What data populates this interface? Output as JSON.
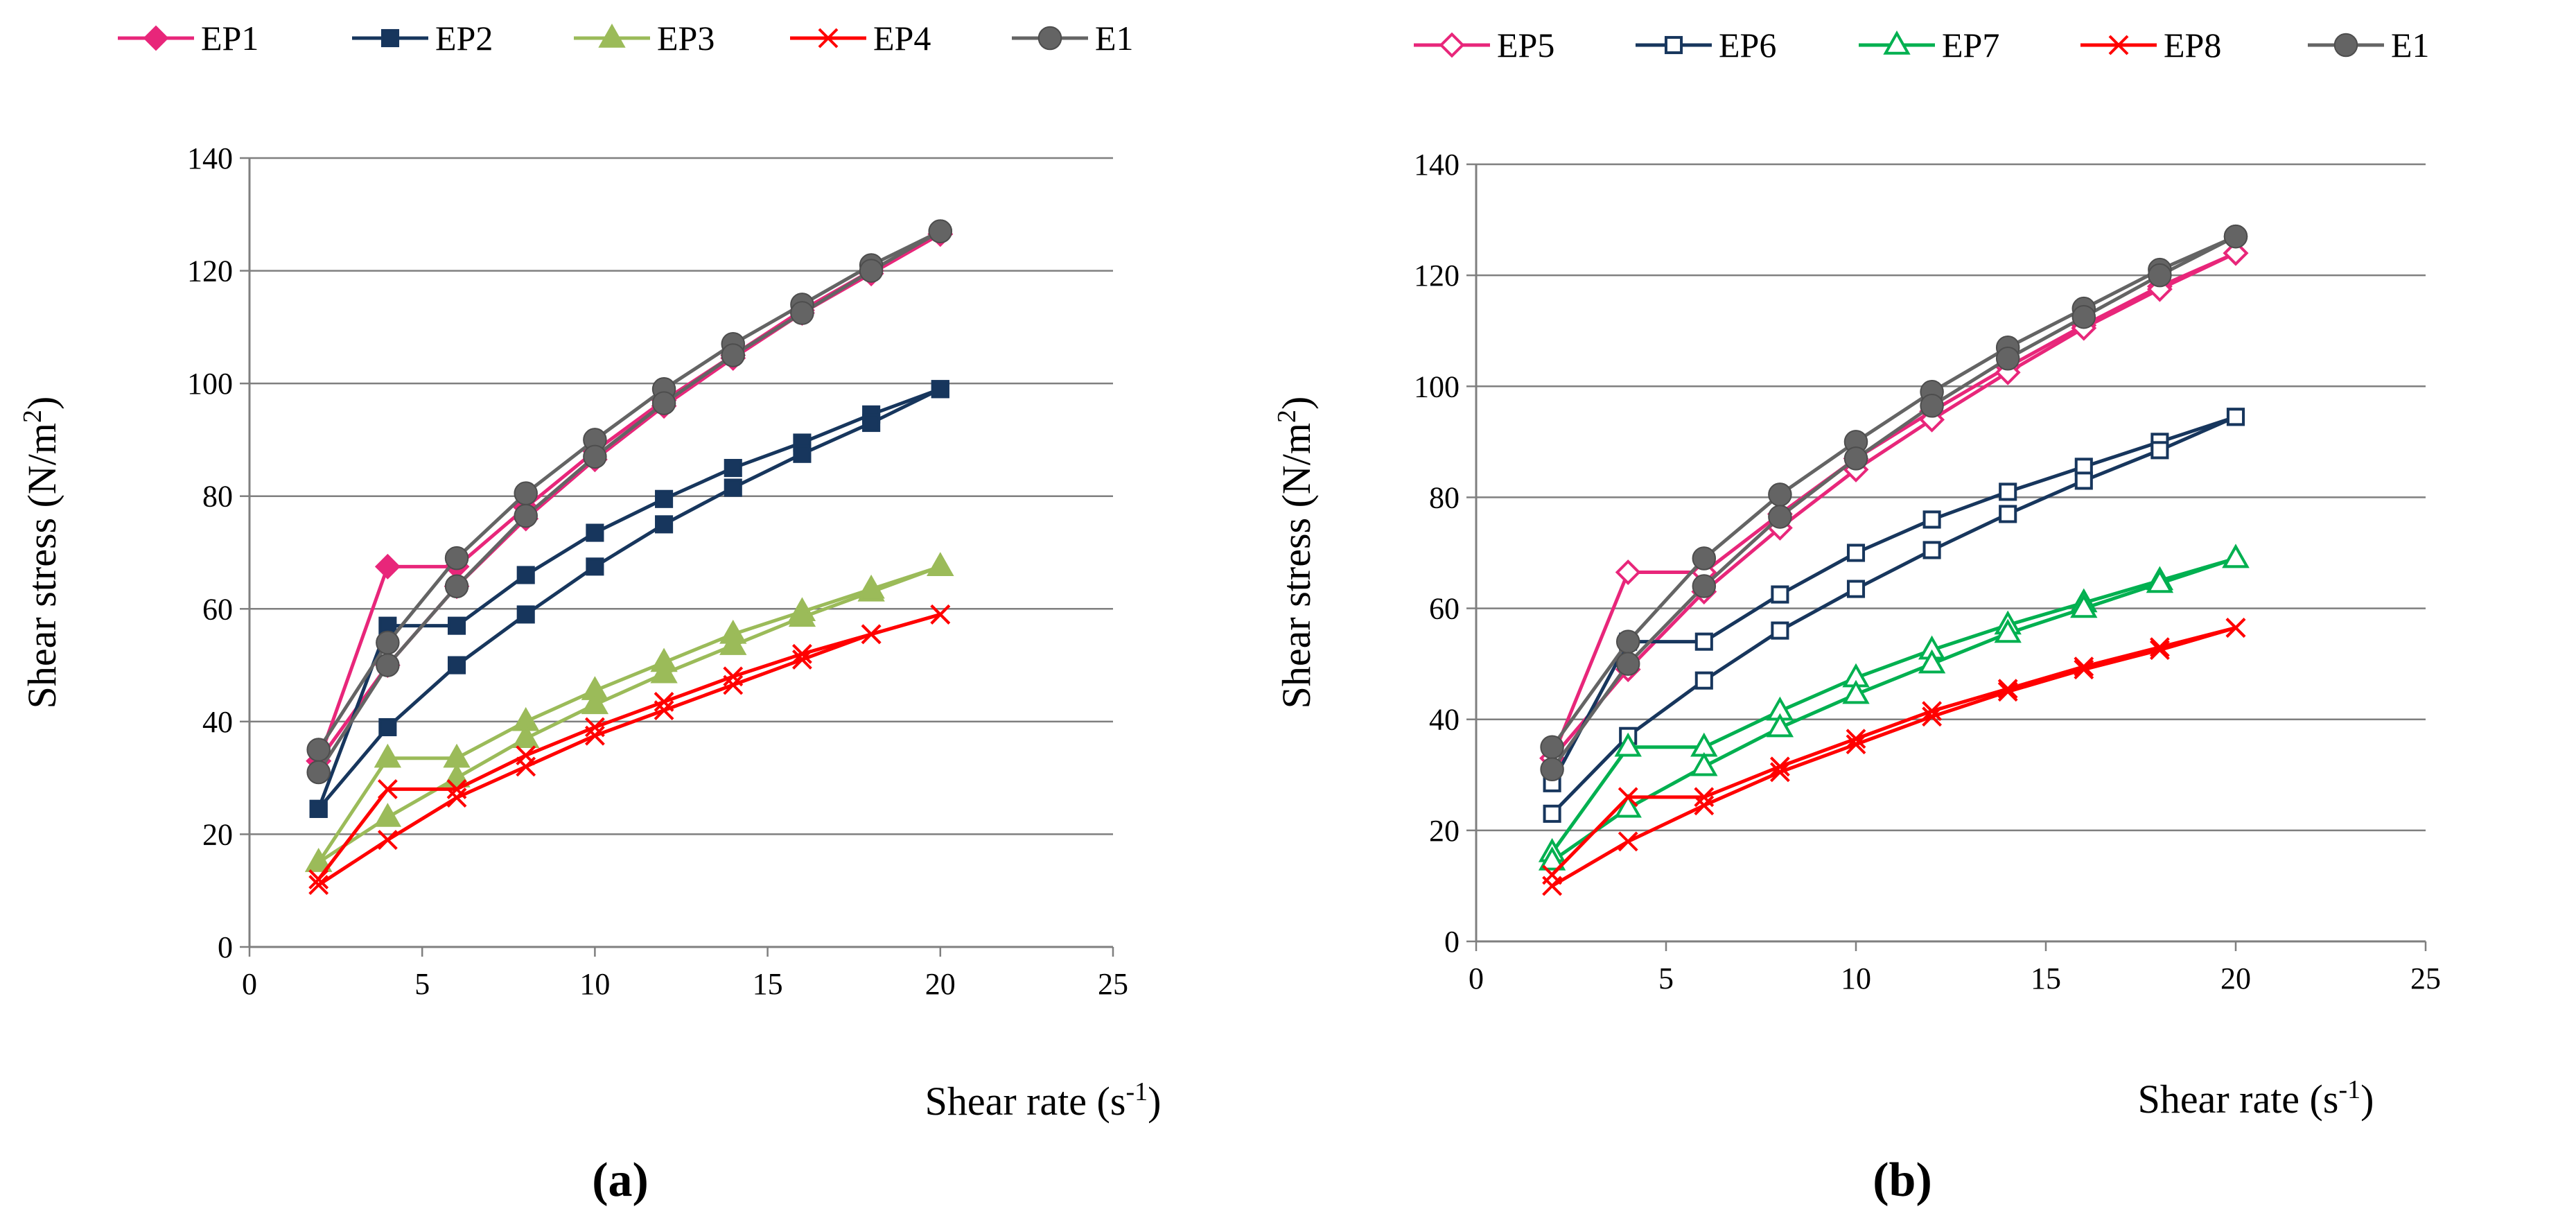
{
  "chart_data": [
    {
      "type": "line",
      "panel_label": "(a)",
      "xlabel": "Shear rate (s",
      "xlabel_sup": "-1",
      "xlabel_close": ")",
      "ylabel": "Shear stress (N/m",
      "ylabel_sup": "2",
      "ylabel_close": ")",
      "xlim": [
        0,
        25
      ],
      "ylim": [
        0,
        140
      ],
      "xticks": [
        "0",
        "5",
        "10",
        "15",
        "20",
        "25"
      ],
      "yticks": [
        "0",
        "20",
        "40",
        "60",
        "80",
        "100",
        "120",
        "140"
      ],
      "grid": true,
      "legend_position": "top",
      "series": [
        {
          "name": "EP1",
          "color": "#E8267A",
          "marker": "diamond",
          "up": [
            [
              2,
              33
            ],
            [
              4,
              67.5
            ],
            [
              6,
              67.5
            ],
            [
              8,
              78
            ],
            [
              10,
              88
            ],
            [
              12,
              97
            ],
            [
              14,
              105
            ],
            [
              16,
              113
            ],
            [
              18,
              120
            ],
            [
              20,
              126.5
            ]
          ],
          "down": [
            [
              2,
              33
            ],
            [
              4,
              50
            ],
            [
              6,
              64
            ],
            [
              8,
              76
            ],
            [
              10,
              86.5
            ],
            [
              12,
              96
            ],
            [
              14,
              104.5
            ],
            [
              16,
              112.5
            ],
            [
              18,
              119.5
            ],
            [
              20,
              126.5
            ]
          ]
        },
        {
          "name": "EP2",
          "color": "#17365D",
          "marker": "square",
          "up": [
            [
              2,
              24.5
            ],
            [
              4,
              57
            ],
            [
              6,
              57
            ],
            [
              8,
              66
            ],
            [
              10,
              73.5
            ],
            [
              12,
              79.5
            ],
            [
              14,
              85
            ],
            [
              16,
              89.5
            ],
            [
              18,
              94.5
            ],
            [
              20,
              99
            ]
          ],
          "down": [
            [
              2,
              24.5
            ],
            [
              4,
              39
            ],
            [
              6,
              50
            ],
            [
              8,
              59
            ],
            [
              10,
              67.5
            ],
            [
              12,
              75
            ],
            [
              14,
              81.5
            ],
            [
              16,
              87.5
            ],
            [
              18,
              93
            ],
            [
              20,
              99
            ]
          ]
        },
        {
          "name": "EP3",
          "color": "#9BBB59",
          "marker": "triangle",
          "up": [
            [
              2,
              15
            ],
            [
              4,
              33.5
            ],
            [
              6,
              33.5
            ],
            [
              8,
              40
            ],
            [
              10,
              45.5
            ],
            [
              12,
              50.5
            ],
            [
              14,
              55.5
            ],
            [
              16,
              59.5
            ],
            [
              18,
              63.5
            ],
            [
              20,
              67.5
            ]
          ],
          "down": [
            [
              2,
              15
            ],
            [
              4,
              23
            ],
            [
              6,
              30
            ],
            [
              8,
              37
            ],
            [
              10,
              43
            ],
            [
              12,
              48.5
            ],
            [
              14,
              53.5
            ],
            [
              16,
              58.5
            ],
            [
              18,
              63
            ],
            [
              20,
              67.5
            ]
          ]
        },
        {
          "name": "EP4",
          "color": "#FF0000",
          "marker": "x",
          "up": [
            [
              2,
              12
            ],
            [
              4,
              28
            ],
            [
              6,
              28
            ],
            [
              8,
              34
            ],
            [
              10,
              39
            ],
            [
              12,
              43.5
            ],
            [
              14,
              48
            ],
            [
              16,
              52
            ],
            [
              18,
              55.5
            ],
            [
              20,
              59
            ]
          ],
          "down": [
            [
              2,
              11
            ],
            [
              4,
              19
            ],
            [
              6,
              26.5
            ],
            [
              8,
              32
            ],
            [
              10,
              37.5
            ],
            [
              12,
              42
            ],
            [
              14,
              46.5
            ],
            [
              16,
              51
            ],
            [
              18,
              55.5
            ],
            [
              20,
              59
            ]
          ]
        },
        {
          "name": "E1",
          "color": "#646464",
          "marker": "circle",
          "up": [
            [
              2,
              35
            ],
            [
              4,
              54
            ],
            [
              6,
              69
            ],
            [
              8,
              80.5
            ],
            [
              10,
              90
            ],
            [
              12,
              99
            ],
            [
              14,
              107
            ],
            [
              16,
              114
            ],
            [
              18,
              121
            ],
            [
              20,
              127
            ]
          ],
          "down": [
            [
              2,
              31
            ],
            [
              4,
              50
            ],
            [
              6,
              64
            ],
            [
              8,
              76.5
            ],
            [
              10,
              87
            ],
            [
              12,
              96.5
            ],
            [
              14,
              105
            ],
            [
              16,
              112.5
            ],
            [
              18,
              120
            ],
            [
              20,
              127
            ]
          ]
        }
      ]
    },
    {
      "type": "line",
      "panel_label": "(b)",
      "xlabel": "Shear rate (s",
      "xlabel_sup": "-1",
      "xlabel_close": ")",
      "ylabel": "Shear stress (N/m",
      "ylabel_sup": "2",
      "ylabel_close": ")",
      "xlim": [
        0,
        25
      ],
      "ylim": [
        0,
        140
      ],
      "xticks": [
        "0",
        "5",
        "10",
        "15",
        "20",
        "25"
      ],
      "yticks": [
        "0",
        "20",
        "40",
        "60",
        "80",
        "100",
        "120",
        "140"
      ],
      "grid": true,
      "legend_position": "top",
      "series": [
        {
          "name": "EP5",
          "color": "#E8267A",
          "marker": "diamond-open",
          "up": [
            [
              2,
              33
            ],
            [
              4,
              66.5
            ],
            [
              6,
              66.5
            ],
            [
              8,
              77
            ],
            [
              10,
              87
            ],
            [
              12,
              95.5
            ],
            [
              14,
              103.5
            ],
            [
              16,
              111
            ],
            [
              18,
              118
            ],
            [
              20,
              124
            ]
          ],
          "down": [
            [
              2,
              33
            ],
            [
              4,
              49
            ],
            [
              6,
              63
            ],
            [
              8,
              74.5
            ],
            [
              10,
              85
            ],
            [
              12,
              94
            ],
            [
              14,
              102.5
            ],
            [
              16,
              110.5
            ],
            [
              18,
              117.5
            ],
            [
              20,
              124
            ]
          ]
        },
        {
          "name": "EP6",
          "color": "#17365D",
          "marker": "square-open",
          "up": [
            [
              2,
              28.5
            ],
            [
              4,
              54
            ],
            [
              6,
              54
            ],
            [
              8,
              62.5
            ],
            [
              10,
              70
            ],
            [
              12,
              76
            ],
            [
              14,
              81
            ],
            [
              16,
              85.5
            ],
            [
              18,
              90
            ],
            [
              20,
              94.5
            ]
          ],
          "down": [
            [
              2,
              23
            ],
            [
              4,
              37
            ],
            [
              6,
              47
            ],
            [
              8,
              56
            ],
            [
              10,
              63.5
            ],
            [
              12,
              70.5
            ],
            [
              14,
              77
            ],
            [
              16,
              83
            ],
            [
              18,
              88.5
            ],
            [
              20,
              94.5
            ]
          ]
        },
        {
          "name": "EP7",
          "color": "#00B050",
          "marker": "triangle-open",
          "up": [
            [
              2,
              16
            ],
            [
              4,
              35
            ],
            [
              6,
              35
            ],
            [
              8,
              41.5
            ],
            [
              10,
              47.5
            ],
            [
              12,
              52.5
            ],
            [
              14,
              57
            ],
            [
              16,
              61
            ],
            [
              18,
              65
            ],
            [
              20,
              69
            ]
          ],
          "down": [
            [
              2,
              14.5
            ],
            [
              4,
              24
            ],
            [
              6,
              31.5
            ],
            [
              8,
              38.5
            ],
            [
              10,
              44.5
            ],
            [
              12,
              50
            ],
            [
              14,
              55.5
            ],
            [
              16,
              60
            ],
            [
              18,
              64.5
            ],
            [
              20,
              69
            ]
          ]
        },
        {
          "name": "EP8",
          "color": "#FF0000",
          "marker": "x",
          "up": [
            [
              2,
              12
            ],
            [
              4,
              26
            ],
            [
              6,
              26
            ],
            [
              8,
              31.5
            ],
            [
              10,
              36.5
            ],
            [
              12,
              41.5
            ],
            [
              14,
              45.5
            ],
            [
              16,
              49.5
            ],
            [
              18,
              53
            ],
            [
              20,
              56.5
            ]
          ],
          "down": [
            [
              2,
              10
            ],
            [
              4,
              18
            ],
            [
              6,
              24.5
            ],
            [
              8,
              30.5
            ],
            [
              10,
              35.5
            ],
            [
              12,
              40.5
            ],
            [
              14,
              45
            ],
            [
              16,
              49
            ],
            [
              18,
              52.5
            ],
            [
              20,
              56.5
            ]
          ]
        },
        {
          "name": "E1",
          "color": "#646464",
          "marker": "circle",
          "up": [
            [
              2,
              35
            ],
            [
              4,
              54
            ],
            [
              6,
              69
            ],
            [
              8,
              80.5
            ],
            [
              10,
              90
            ],
            [
              12,
              99
            ],
            [
              14,
              107
            ],
            [
              16,
              114
            ],
            [
              18,
              121
            ],
            [
              20,
              127
            ]
          ],
          "down": [
            [
              2,
              31
            ],
            [
              4,
              50
            ],
            [
              6,
              64
            ],
            [
              8,
              76.5
            ],
            [
              10,
              87
            ],
            [
              12,
              96.5
            ],
            [
              14,
              105
            ],
            [
              16,
              112.5
            ],
            [
              18,
              120
            ],
            [
              20,
              127
            ]
          ]
        }
      ]
    }
  ]
}
